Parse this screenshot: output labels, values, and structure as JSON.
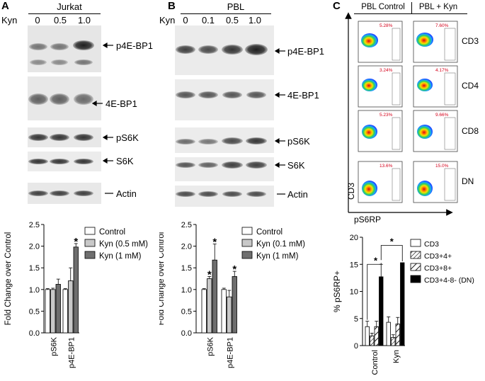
{
  "panels": {
    "A": {
      "letter": "A",
      "cell_line": "Jurkat",
      "treatment_label": "Kyn",
      "doses": [
        "0",
        "0.5",
        "1.0"
      ],
      "blot_labels": [
        "p4E-BP1",
        "4E-BP1",
        "pS6K",
        "S6K",
        "Actin"
      ]
    },
    "B": {
      "letter": "B",
      "cell_line": "PBL",
      "treatment_label": "Kyn",
      "doses": [
        "0",
        "0.1",
        "0.5",
        "1.0"
      ],
      "blot_labels": [
        "p4E-BP1",
        "4E-BP1",
        "pS6K",
        "S6K",
        "Actin"
      ]
    },
    "C": {
      "letter": "C",
      "col_headers": [
        "PBL Control",
        "PBL + Kyn"
      ],
      "row_labels": [
        "CD3",
        "CD4",
        "CD8",
        "DN"
      ],
      "percentages": [
        [
          "5.28%",
          "7.60%"
        ],
        [
          "3.24%",
          "4.17%"
        ],
        [
          "5.23%",
          "9.66%"
        ],
        [
          "13.6%",
          "15.0%"
        ]
      ],
      "y_axis_label": "CD3",
      "x_axis_label": "pS6RP"
    }
  },
  "chart_data": [
    {
      "type": "bar",
      "panel": "A",
      "categories": [
        "pS6K",
        "p4E-BP1"
      ],
      "ylabel": "Fold Change over Control",
      "ylim": [
        0,
        2.5
      ],
      "yticks": [
        "0.0",
        "0.5",
        "1.0",
        "1.5",
        "2.0",
        "2.5"
      ],
      "legend_position": "top-right",
      "series": [
        {
          "name": "Control",
          "values": [
            1.0,
            1.0
          ],
          "errors": [
            0.02,
            0.02
          ],
          "color": "#ffffff"
        },
        {
          "name": "Kyn (0.5 mM)",
          "values": [
            1.0,
            1.2
          ],
          "errors": [
            0.03,
            0.3
          ],
          "color": "#c8c8c8"
        },
        {
          "name": "Kyn (1 mM)",
          "values": [
            1.12,
            1.98
          ],
          "errors": [
            0.12,
            0.08
          ],
          "color": "#6e6e6e"
        }
      ],
      "annotations": [
        "*"
      ]
    },
    {
      "type": "bar",
      "panel": "B",
      "categories": [
        "pS6K",
        "p4E-BP1"
      ],
      "ylabel": "Fold Change over Control",
      "ylim": [
        0,
        2.5
      ],
      "yticks": [
        "0.0",
        "0.5",
        "1.0",
        "1.5",
        "2.0",
        "2.5"
      ],
      "legend_position": "top-right",
      "series": [
        {
          "name": "Control",
          "values": [
            1.0,
            1.0
          ],
          "errors": [
            0.02,
            0.03
          ],
          "color": "#ffffff"
        },
        {
          "name": "Kyn (0.1 mM)",
          "values": [
            1.25,
            0.83
          ],
          "errors": [
            0.05,
            0.15
          ],
          "color": "#c8c8c8"
        },
        {
          "name": "Kyn (1 mM)",
          "values": [
            1.68,
            1.3
          ],
          "errors": [
            0.37,
            0.12
          ],
          "color": "#6e6e6e"
        }
      ],
      "annotations": [
        "*",
        "*",
        "*"
      ]
    },
    {
      "type": "bar",
      "panel": "C",
      "categories": [
        "Control",
        "Kyn"
      ],
      "ylabel": "% pS6RP+",
      "ylim": [
        0,
        20
      ],
      "yticks": [
        "0",
        "5",
        "10",
        "15",
        "20"
      ],
      "legend_position": "right",
      "series": [
        {
          "name": "CD3",
          "values": [
            3.5,
            4.3
          ],
          "errors": [
            1.0,
            1.0
          ],
          "pattern": "open"
        },
        {
          "name": "CD3+4+",
          "values": [
            1.8,
            1.5
          ],
          "errors": [
            0.5,
            0.5
          ],
          "pattern": "hatch"
        },
        {
          "name": "CD3+8+",
          "values": [
            3.5,
            4.0
          ],
          "errors": [
            1.0,
            1.2
          ],
          "pattern": "hatch-wide"
        },
        {
          "name": "CD3+4-8- (DN)",
          "values": [
            12.7,
            15.3
          ],
          "errors": [
            2.3,
            0
          ],
          "pattern": "solid"
        }
      ],
      "annotations": [
        "*",
        "*"
      ]
    }
  ]
}
